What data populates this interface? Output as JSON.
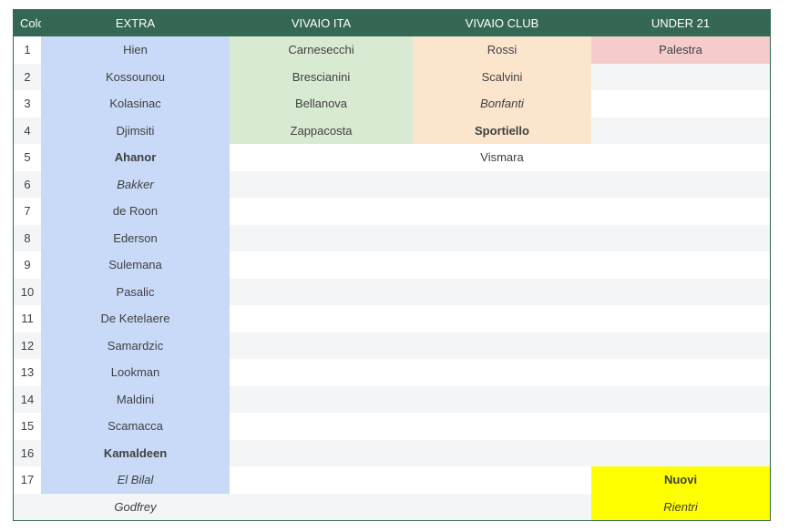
{
  "headers": {
    "num": "Colo",
    "extra": "EXTRA",
    "vivaio_ita": "VIVAIO ITA",
    "vivaio_club": "VIVAIO CLUB",
    "under21": "UNDER 21"
  },
  "rows": [
    {
      "num": "1",
      "extra": "Hien",
      "ita": "Carnesecchi",
      "club": "Rossi",
      "u21": "Palestra"
    },
    {
      "num": "2",
      "extra": "Kossounou",
      "ita": "Brescianini",
      "club": "Scalvini",
      "u21": ""
    },
    {
      "num": "3",
      "extra": "Kolasinac",
      "ita": "Bellanova",
      "club": "Bonfanti",
      "u21": ""
    },
    {
      "num": "4",
      "extra": "Djimsiti",
      "ita": "Zappacosta",
      "club": "Sportiello",
      "u21": ""
    },
    {
      "num": "5",
      "extra": "Ahanor",
      "ita": "",
      "club": "Vismara",
      "u21": ""
    },
    {
      "num": "6",
      "extra": "Bakker",
      "ita": "",
      "club": "",
      "u21": ""
    },
    {
      "num": "7",
      "extra": "de Roon",
      "ita": "",
      "club": "",
      "u21": ""
    },
    {
      "num": "8",
      "extra": "Ederson",
      "ita": "",
      "club": "",
      "u21": ""
    },
    {
      "num": "9",
      "extra": "Sulemana",
      "ita": "",
      "club": "",
      "u21": ""
    },
    {
      "num": "10",
      "extra": "Pasalic",
      "ita": "",
      "club": "",
      "u21": ""
    },
    {
      "num": "11",
      "extra": "De Ketelaere",
      "ita": "",
      "club": "",
      "u21": ""
    },
    {
      "num": "12",
      "extra": "Samardzic",
      "ita": "",
      "club": "",
      "u21": ""
    },
    {
      "num": "13",
      "extra": "Lookman",
      "ita": "",
      "club": "",
      "u21": ""
    },
    {
      "num": "14",
      "extra": "Maldini",
      "ita": "",
      "club": "",
      "u21": ""
    },
    {
      "num": "15",
      "extra": "Scamacca",
      "ita": "",
      "club": "",
      "u21": ""
    },
    {
      "num": "16",
      "extra": "Kamaldeen",
      "ita": "",
      "club": "",
      "u21": ""
    },
    {
      "num": "17",
      "extra": "El Bilal",
      "ita": "",
      "club": "",
      "u21": "Nuovi"
    },
    {
      "num": "",
      "extra": "Godfrey",
      "ita": "",
      "club": "",
      "u21": "Rientri"
    }
  ],
  "colors": {
    "header_bg": "#356854",
    "extra_bg": "#c9daf8",
    "vivaio_ita_bg": "#d9ead3",
    "vivaio_club_bg": "#fce5cd",
    "under21_bg": "#f4cccc",
    "legend_bg": "#ffff00"
  }
}
